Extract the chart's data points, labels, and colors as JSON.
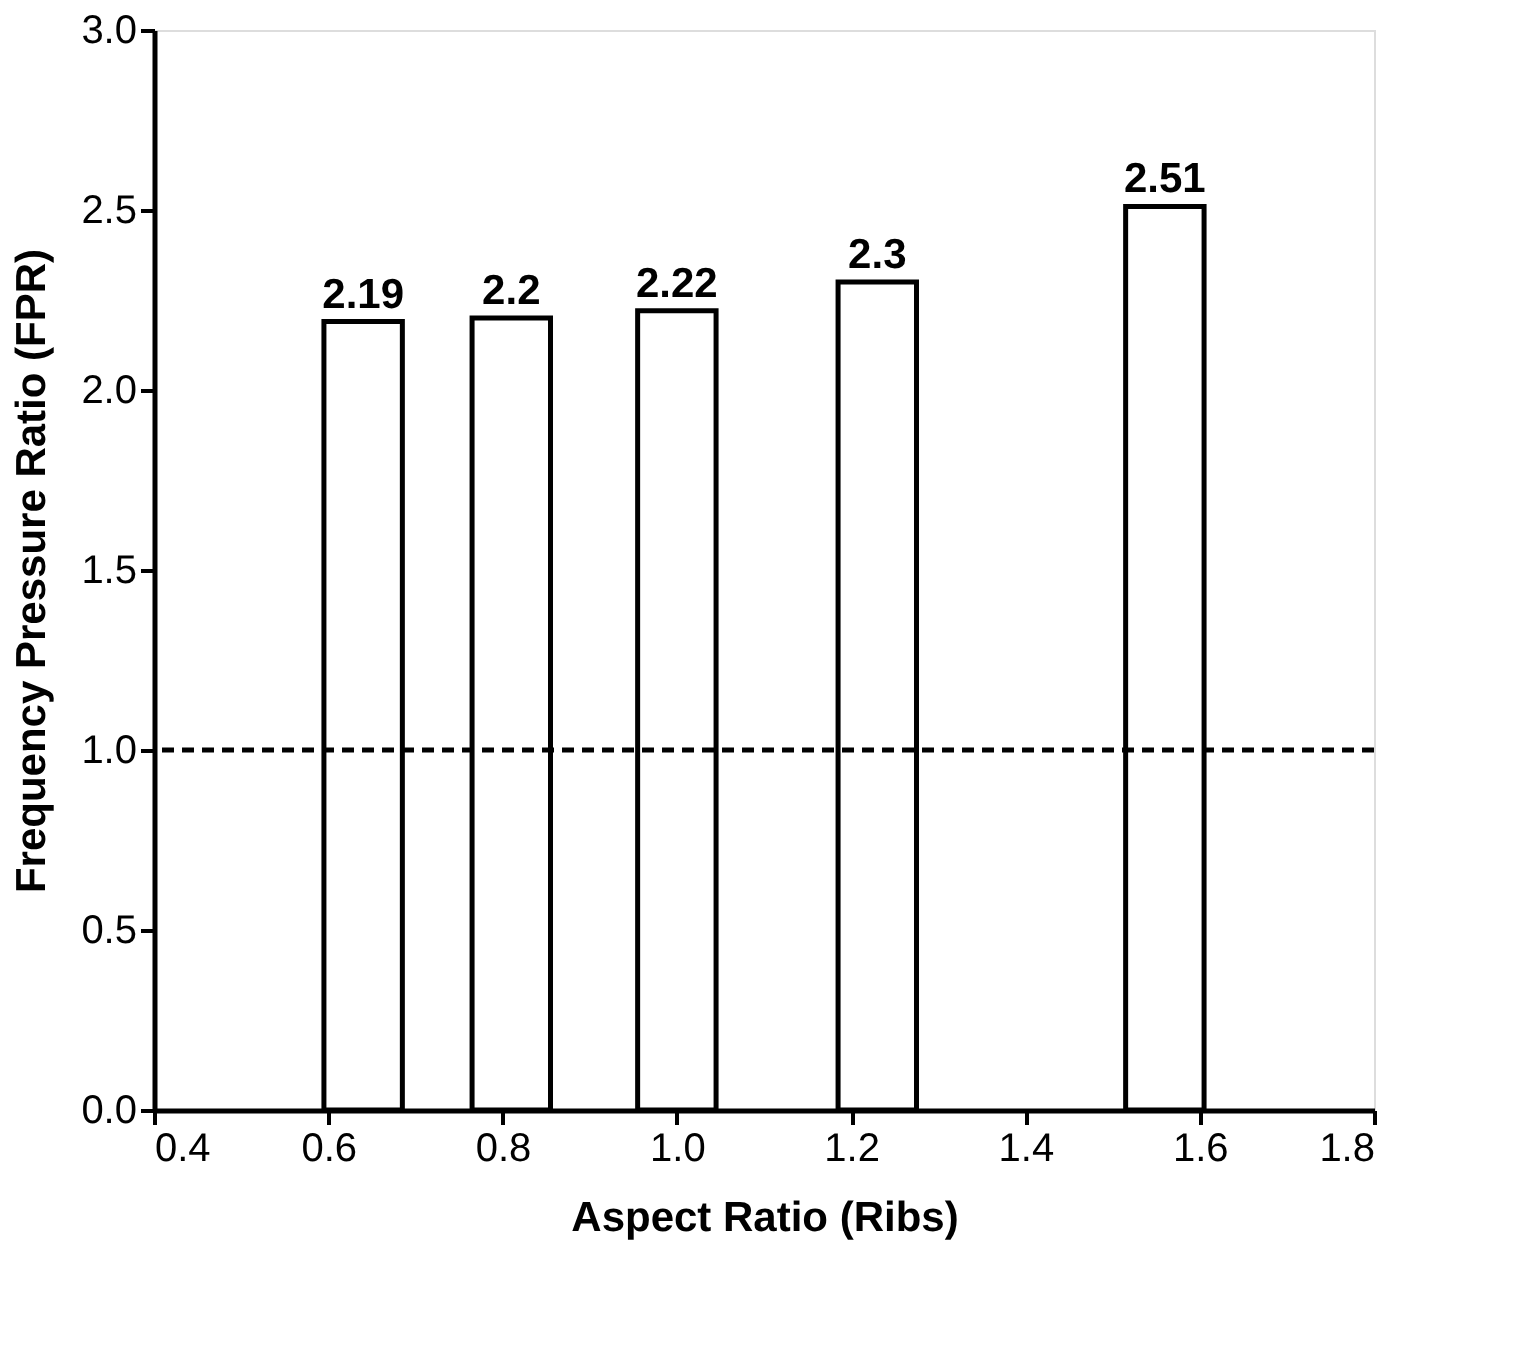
{
  "chart_data": {
    "type": "bar",
    "xlabel": "Aspect Ratio (Ribs)",
    "ylabel": "Frequency Pressure Ratio (FPR)",
    "x": [
      0.64,
      0.81,
      1.0,
      1.23,
      1.56
    ],
    "values": [
      2.19,
      2.2,
      2.22,
      2.3,
      2.51
    ],
    "color": "#ffffff",
    "data_labels": true,
    "xlim": [
      0.4,
      1.8
    ],
    "xticks": [
      0.4,
      0.6,
      0.8,
      {
        "value": 1,
        "label": "1.0"
      },
      1.2,
      1.4,
      1.6,
      1.8
    ],
    "ylim": [
      0.0,
      3.0
    ],
    "yticks": [
      {
        "value": 0,
        "label": "0.0"
      },
      0.5,
      {
        "value": 1,
        "label": "1.0"
      },
      1.5,
      {
        "value": 2,
        "label": "2.0"
      },
      2.5,
      {
        "value": 3,
        "label": "3.0"
      }
    ],
    "ref_lines": [
      {
        "axis": "y",
        "value": 1.0,
        "color": "#000000",
        "line_style": "dashed"
      }
    ],
    "grid": false
  }
}
